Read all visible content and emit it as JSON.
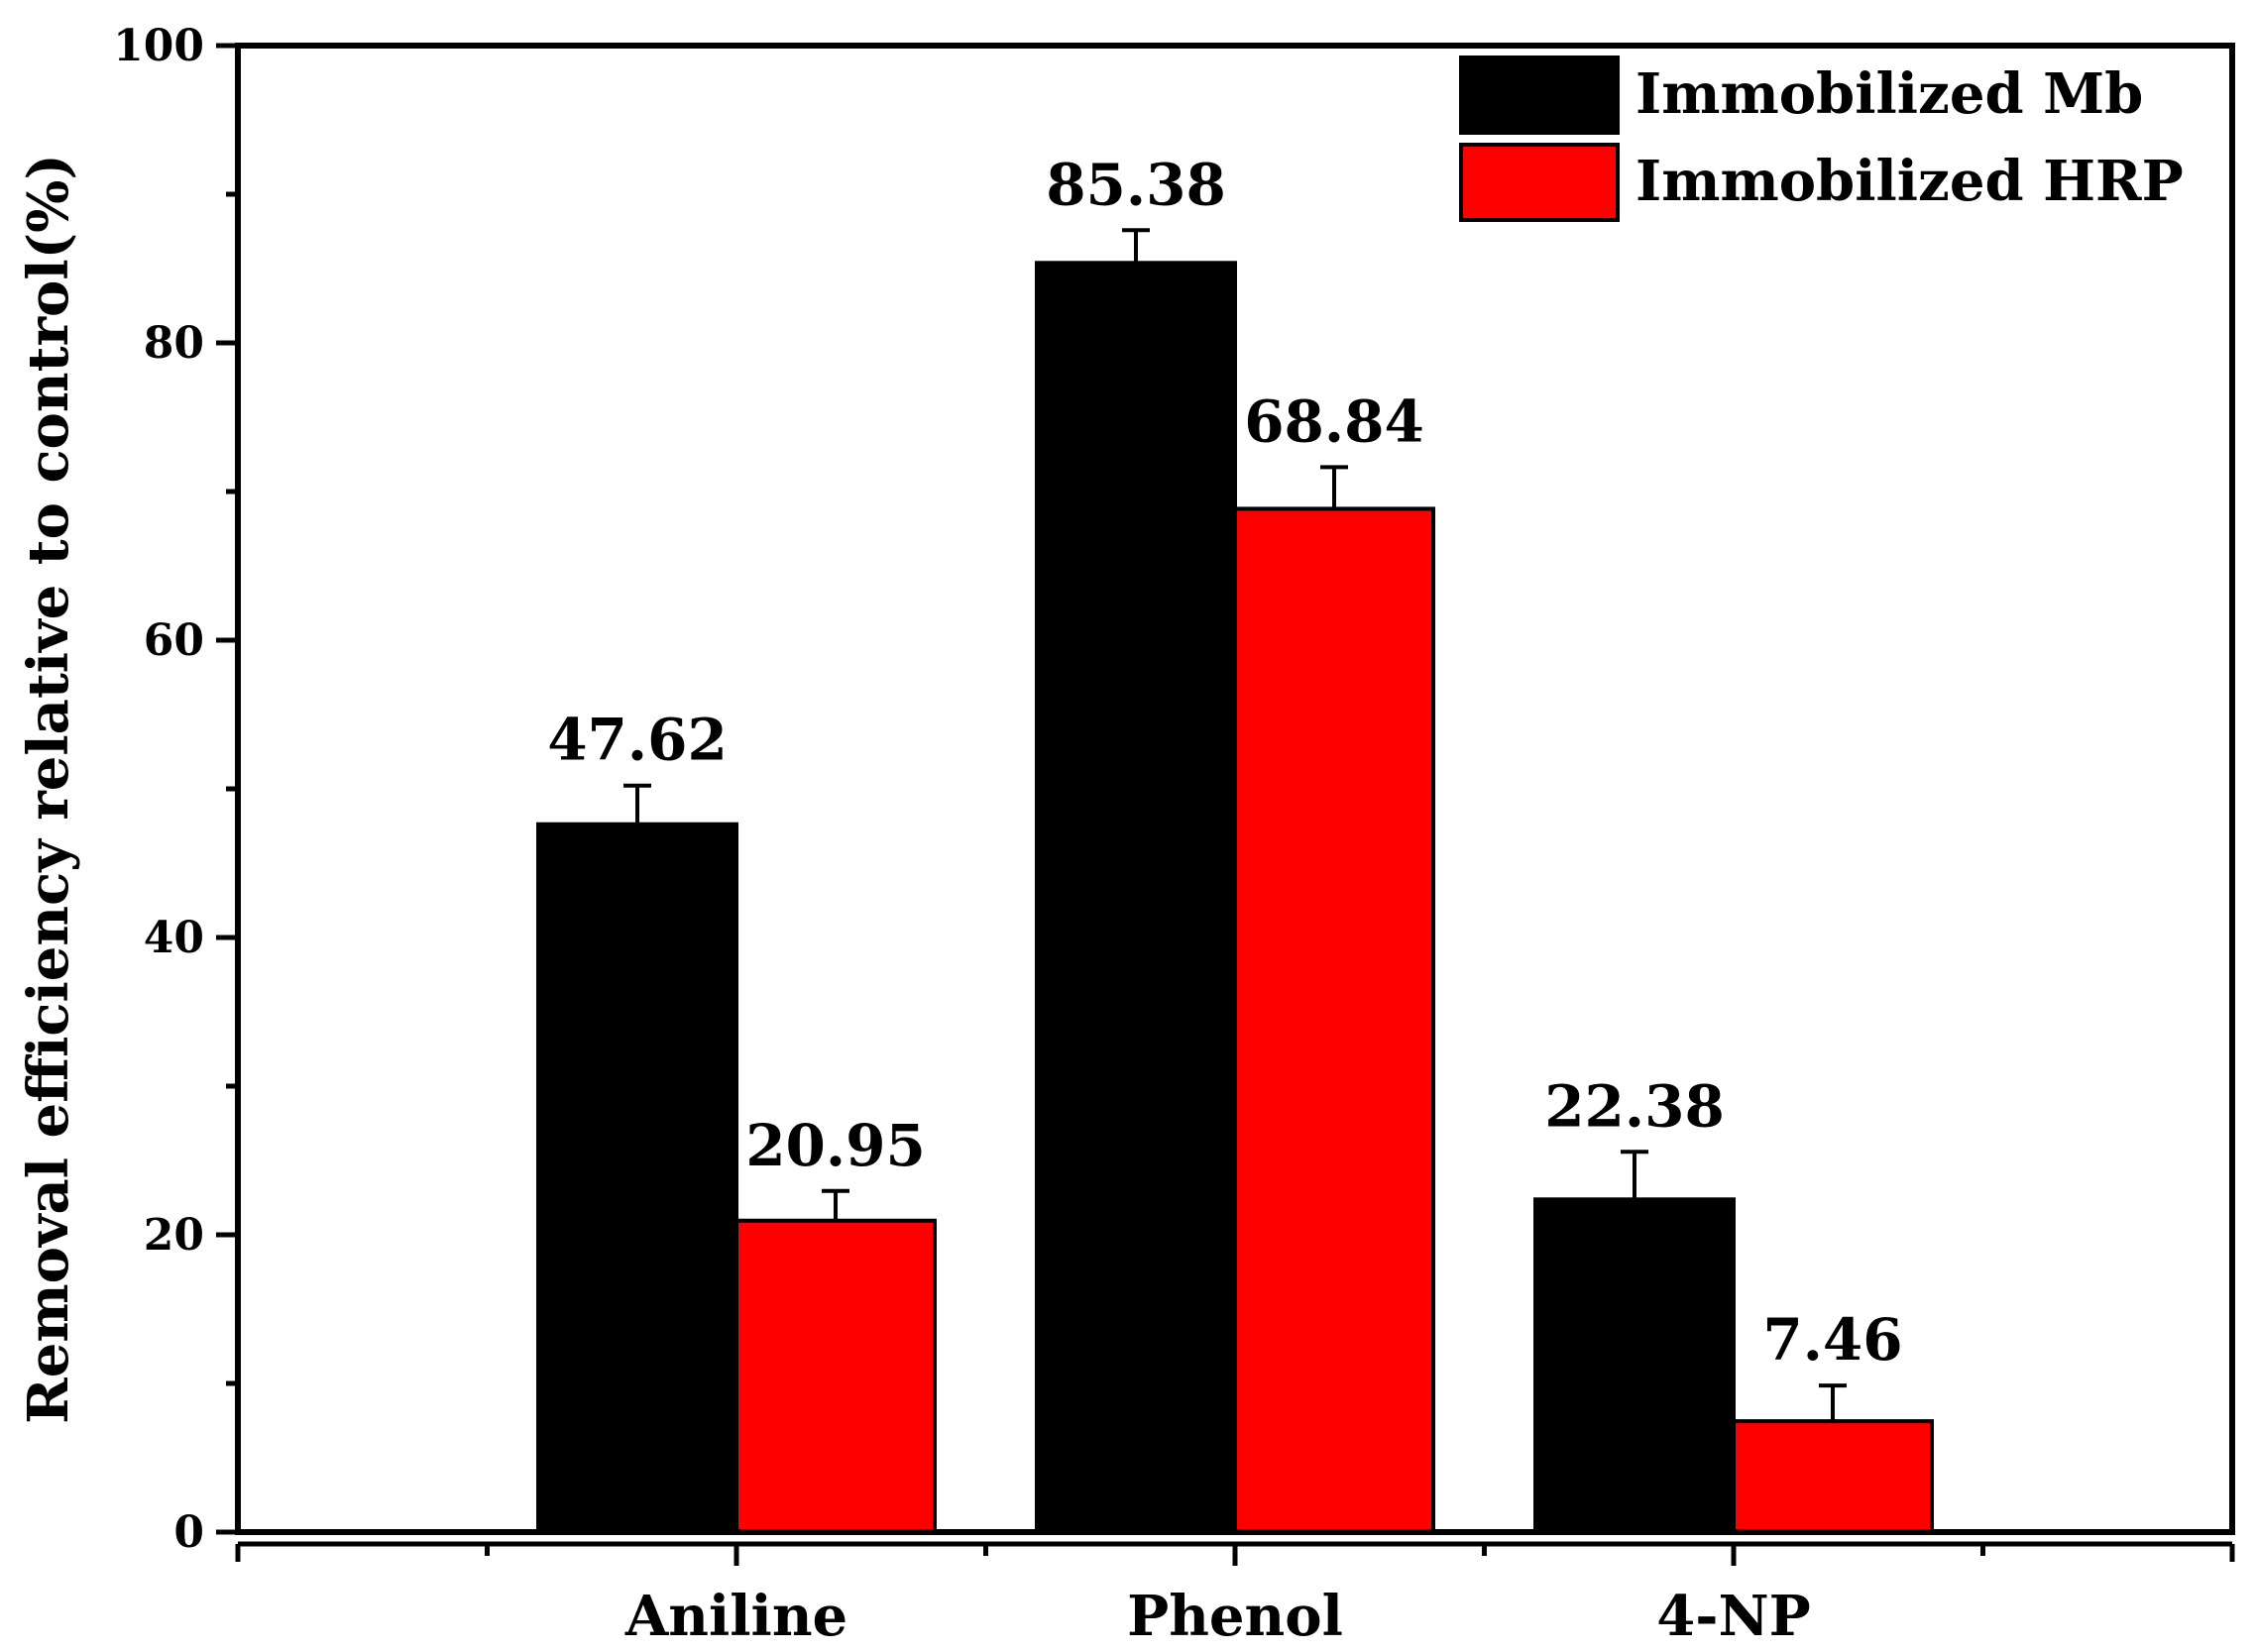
{
  "chart_data": {
    "type": "bar",
    "title": "",
    "xlabel": "",
    "ylabel": "Removal efficiency relative to control(%)",
    "ylim": [
      0,
      100
    ],
    "yticks": [
      0,
      20,
      40,
      60,
      80,
      100
    ],
    "grid": false,
    "legend_position": "top-right",
    "categories": [
      "Aniline",
      "Phenol",
      "4-NP"
    ],
    "series": [
      {
        "name": "Immobilized Mb",
        "color": "#000000",
        "values": [
          47.62,
          85.38,
          22.38
        ],
        "errors": [
          2.6,
          2.2,
          3.2
        ],
        "labels": [
          "47.62",
          "85.38",
          "22.38"
        ]
      },
      {
        "name": "Immobilized HRP",
        "color": "#ff0000",
        "values": [
          20.95,
          68.84,
          7.46
        ],
        "errors": [
          2.0,
          2.8,
          2.4
        ],
        "labels": [
          "20.95",
          "68.84",
          "7.46"
        ]
      }
    ]
  }
}
